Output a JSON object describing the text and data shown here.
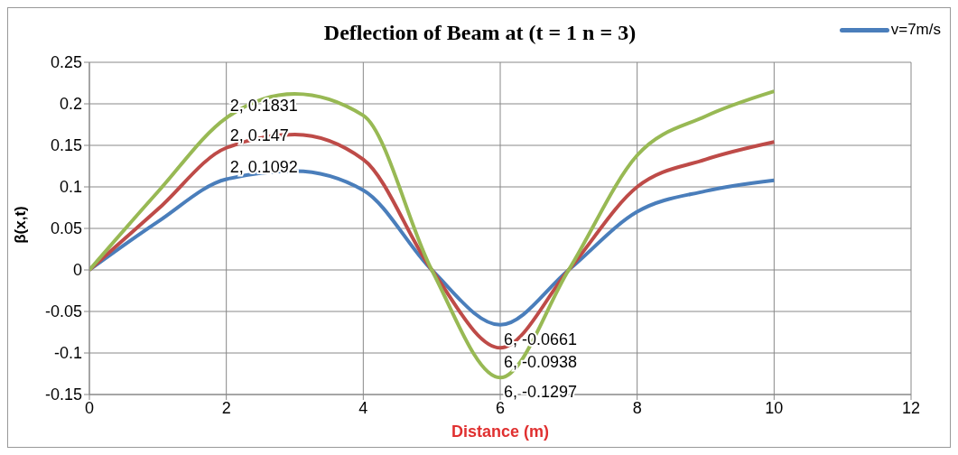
{
  "chart_data": {
    "type": "line",
    "title": "Deflection of Beam at (t = 1 n = 3)",
    "xlabel": "Distance (m)",
    "ylabel": "β(x,t)",
    "x": [
      0,
      1,
      2,
      3,
      4,
      5,
      6,
      7,
      8,
      9,
      10
    ],
    "series": [
      {
        "name": "v=7m/s",
        "color": "#4a7ebb",
        "values": [
          0,
          0.058,
          0.1092,
          0.119,
          0.096,
          0,
          -0.0661,
          0,
          0.07,
          0.095,
          0.108
        ],
        "value_labels": [
          null,
          null,
          "2, 0.1092",
          null,
          null,
          null,
          "6, -0.0661",
          null,
          null,
          null,
          null
        ]
      },
      {
        "color": "#be4b48",
        "values": [
          0,
          0.073,
          0.147,
          0.163,
          0.133,
          0,
          -0.0938,
          0,
          0.1,
          0.133,
          0.154
        ],
        "value_labels": [
          null,
          null,
          "2, 0.147",
          null,
          null,
          null,
          "6, -0.0938",
          null,
          null,
          null,
          null
        ]
      },
      {
        "color": "#98b954",
        "values": [
          0,
          0.094,
          0.1831,
          0.212,
          0.186,
          0,
          -0.1297,
          0,
          0.138,
          0.185,
          0.215
        ],
        "value_labels": [
          null,
          null,
          "2, 0.1831",
          null,
          null,
          null,
          "6, -0.1297",
          null,
          null,
          null,
          null
        ]
      }
    ],
    "xlim": [
      0,
      12
    ],
    "xticks": [
      0,
      2,
      4,
      6,
      8,
      10,
      12
    ],
    "ylim": [
      -0.15,
      0.25
    ],
    "yticks": [
      -0.15,
      -0.1,
      -0.05,
      0,
      0.05,
      0.1,
      0.15,
      0.2,
      0.25
    ],
    "grid": true,
    "legend": "top right",
    "marker": "none",
    "line_style": "solid"
  }
}
